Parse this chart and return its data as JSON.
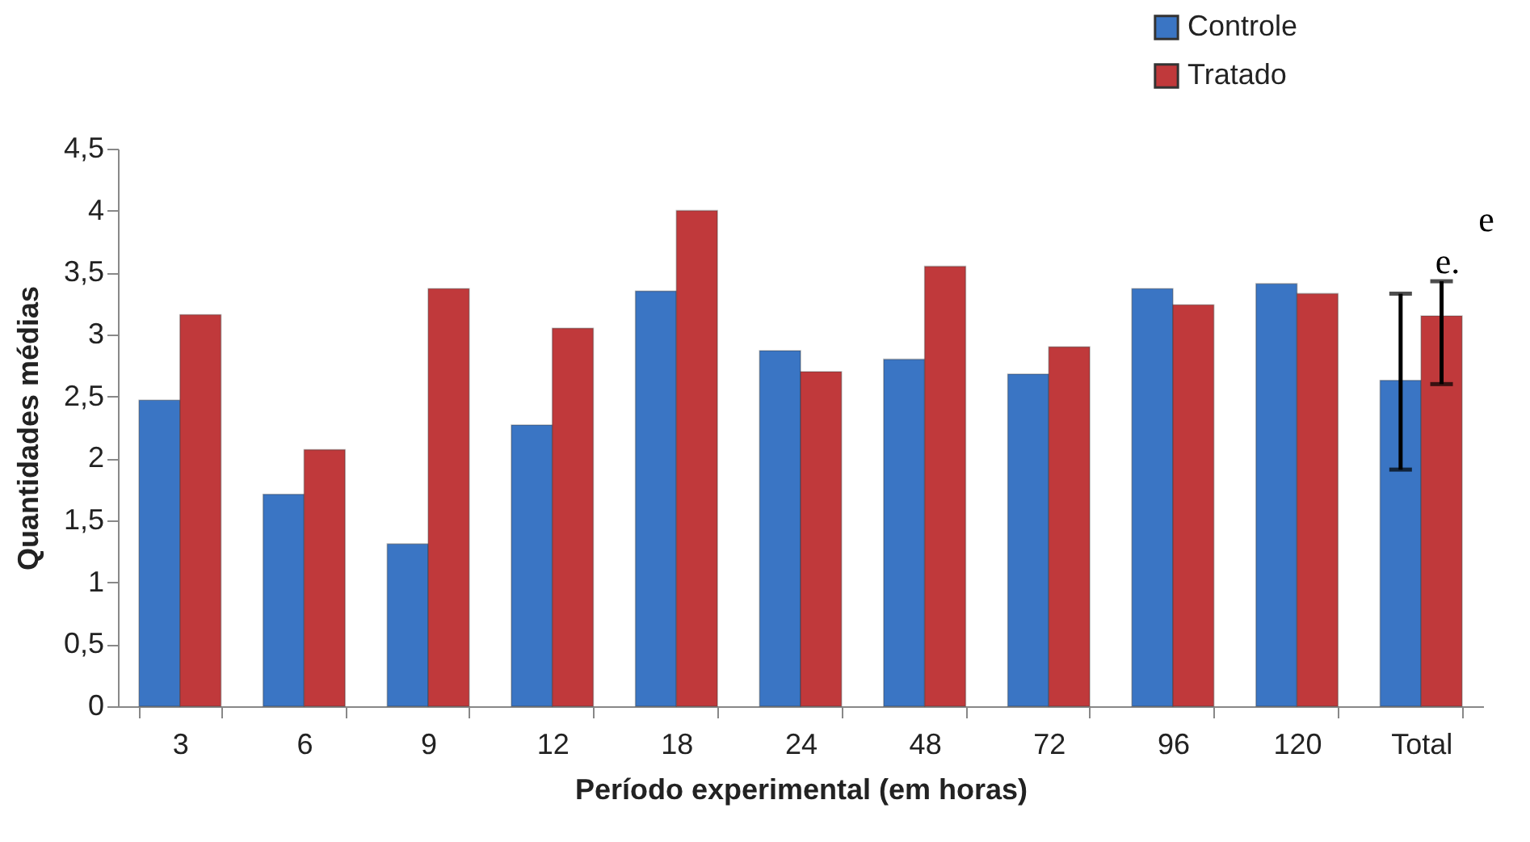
{
  "chart_data": {
    "type": "bar",
    "xlabel": "Período experimental (em horas)",
    "ylabel": "Quantidades médias",
    "categories": [
      "3",
      "6",
      "9",
      "12",
      "18",
      "24",
      "48",
      "72",
      "96",
      "120",
      "Total"
    ],
    "series": [
      {
        "name": "Controle",
        "color": "#3a75c4",
        "values": [
          2.47,
          1.71,
          1.31,
          2.27,
          3.35,
          2.87,
          2.8,
          2.68,
          3.37,
          3.41,
          2.63
        ],
        "errors": [
          null,
          null,
          null,
          null,
          null,
          null,
          null,
          null,
          null,
          null,
          [
            1.91,
            3.33
          ]
        ]
      },
      {
        "name": "Tratado",
        "color": "#c0393b",
        "values": [
          3.16,
          2.07,
          3.37,
          3.05,
          4.0,
          2.7,
          3.55,
          2.9,
          3.24,
          3.33,
          3.15
        ],
        "errors": [
          null,
          null,
          null,
          null,
          null,
          null,
          null,
          null,
          null,
          null,
          [
            2.6,
            3.43
          ]
        ]
      }
    ],
    "ylim": [
      0,
      4.5
    ],
    "yticks": [
      0,
      {
        "value": 0.5,
        "label": "0,5"
      },
      1,
      {
        "value": 1.5,
        "label": "1,5"
      },
      2,
      {
        "value": 2.5,
        "label": "2,5"
      },
      3,
      {
        "value": 3.5,
        "label": "3,5"
      },
      4,
      {
        "value": 4.5,
        "label": "4,5"
      }
    ],
    "annotations": [
      "e.",
      "e"
    ],
    "legend": "top right",
    "grid": false
  }
}
